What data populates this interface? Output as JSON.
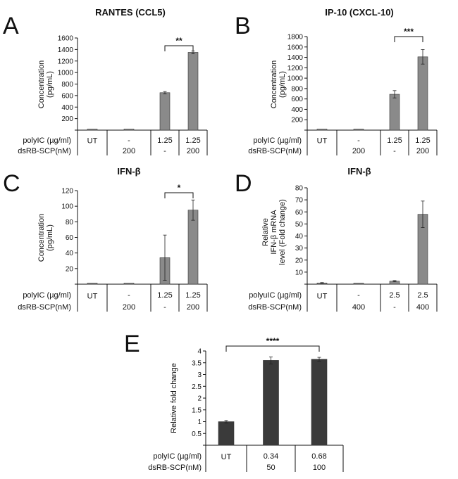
{
  "chart_data": [
    {
      "id": "A",
      "type": "bar",
      "panel_letter": "A",
      "title": "RANTES (CCL5)",
      "ylabel": "Concentration (pg/mL)",
      "ylabel_lines": [
        "Concentration",
        "(pg/mL)"
      ],
      "ylim": [
        0,
        1600
      ],
      "yticks": [
        200,
        400,
        600,
        800,
        1000,
        1200,
        1400,
        1600
      ],
      "values": [
        0,
        0,
        650,
        1350
      ],
      "errors": [
        0,
        0,
        20,
        25
      ],
      "bar_color": "#8a8a8a",
      "significance": {
        "from": 2,
        "to": 3,
        "label": "**"
      },
      "row_labels": [
        "polyIC (µg/ml)",
        "dsRB-SCP(nM)"
      ],
      "rows": [
        [
          "UT",
          "-",
          "1.25",
          "1.25"
        ],
        [
          "",
          "200",
          "-",
          "200"
        ]
      ]
    },
    {
      "id": "B",
      "type": "bar",
      "panel_letter": "B",
      "title": "IP-10 (CXCL-10)",
      "ylabel": "Concentration (pg/mL)",
      "ylabel_lines": [
        "Concentration",
        "(pg/mL)"
      ],
      "ylim": [
        0,
        1800
      ],
      "yticks": [
        200,
        400,
        600,
        800,
        1000,
        1200,
        1400,
        1600,
        1800
      ],
      "values": [
        0,
        0,
        690,
        1410
      ],
      "errors": [
        0,
        0,
        70,
        140
      ],
      "bar_color": "#8a8a8a",
      "significance": {
        "from": 2,
        "to": 3,
        "label": "***"
      },
      "row_labels": [
        "polyIC (µg/ml)",
        "dsRB-SCP(nM)"
      ],
      "rows": [
        [
          "UT",
          "-",
          "1.25",
          "1.25"
        ],
        [
          "",
          "200",
          "-",
          "200"
        ]
      ]
    },
    {
      "id": "C",
      "type": "bar",
      "panel_letter": "C",
      "title": "IFN-β",
      "ylabel": "Concentration (pg/mL)",
      "ylabel_lines": [
        "Concentration",
        "(pg/mL)"
      ],
      "ylim": [
        0,
        120
      ],
      "yticks": [
        20,
        40,
        60,
        80,
        100,
        120
      ],
      "values": [
        0,
        0,
        34,
        95
      ],
      "errors": [
        0,
        0,
        29,
        13
      ],
      "bar_color": "#8a8a8a",
      "significance": {
        "from": 2,
        "to": 3,
        "label": "*"
      },
      "row_labels": [
        "polyIC (µg/ml)",
        "dsRB-SCP(nM)"
      ],
      "rows": [
        [
          "UT",
          "-",
          "1.25",
          "1.25"
        ],
        [
          "",
          "200",
          "-",
          "200"
        ]
      ]
    },
    {
      "id": "D",
      "type": "bar",
      "panel_letter": "D",
      "title": "IFN-β",
      "ylabel": "Relative IFN-β mRNA level (Fold change)",
      "ylabel_lines": [
        "Relative",
        "IFN-β mRNA",
        "level (Fold change)"
      ],
      "ylim": [
        0,
        80
      ],
      "yticks": [
        10,
        20,
        30,
        40,
        50,
        60,
        70,
        80
      ],
      "values": [
        1,
        0,
        2.5,
        58
      ],
      "errors": [
        0.3,
        0,
        0.5,
        11
      ],
      "bar_color": "#8a8a8a",
      "significance": null,
      "row_labels": [
        "polyuIC (µg/ml)",
        "dsRB-SCP(nM)"
      ],
      "rows": [
        [
          "UT",
          "-",
          "2.5",
          "2.5"
        ],
        [
          "",
          "400",
          "-",
          "400"
        ]
      ]
    },
    {
      "id": "E",
      "type": "bar",
      "panel_letter": "E",
      "title": "",
      "ylabel": "Relative fold change",
      "ylabel_lines": [
        "Relative fold change"
      ],
      "ylim": [
        0,
        4
      ],
      "yticks": [
        0.5,
        1,
        1.5,
        2,
        2.5,
        3,
        3.5,
        4
      ],
      "values": [
        1,
        3.6,
        3.65
      ],
      "errors": [
        0.05,
        0.15,
        0.08
      ],
      "bar_color": "#3a3a3a",
      "significance": {
        "from": 0,
        "to": 2,
        "label": "****"
      },
      "row_labels": [
        "polyIC (µg/ml)",
        "dsRB-SCP(nM)"
      ],
      "rows": [
        [
          "UT",
          "0.34",
          "0.68"
        ],
        [
          "",
          "50",
          "100"
        ]
      ]
    }
  ]
}
